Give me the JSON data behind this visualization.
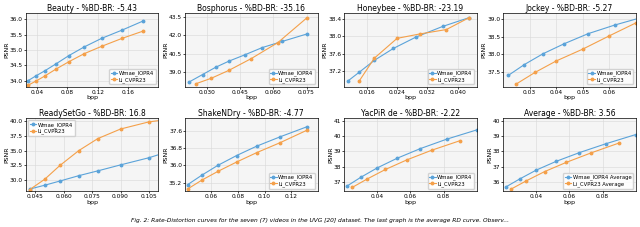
{
  "subplots": [
    {
      "title": "Beauty - %BD-BR: -5.43",
      "xlabel": "bpp",
      "ylabel": "PSNR",
      "xlim": [
        0.025,
        0.2
      ],
      "ylim": [
        33.8,
        36.2
      ],
      "curve1_x": [
        0.028,
        0.038,
        0.05,
        0.065,
        0.082,
        0.102,
        0.125,
        0.152,
        0.18
      ],
      "curve1_y": [
        34.0,
        34.15,
        34.32,
        34.55,
        34.82,
        35.1,
        35.38,
        35.65,
        35.95
      ],
      "curve2_x": [
        0.028,
        0.038,
        0.05,
        0.065,
        0.082,
        0.102,
        0.125,
        0.152,
        0.18
      ],
      "curve2_y": [
        33.85,
        33.98,
        34.15,
        34.38,
        34.62,
        34.88,
        35.12,
        35.38,
        35.62
      ],
      "label1": "Wmae_IOPR4",
      "label2": "Li_CVPR23",
      "legend_loc": "lower right"
    },
    {
      "title": "Bosphorus - %BD-BR: -35.16",
      "xlabel": "bpp",
      "ylabel": "PSNR",
      "xlim": [
        0.02,
        0.08
      ],
      "ylim": [
        37.8,
        43.8
      ],
      "curve1_x": [
        0.022,
        0.028,
        0.034,
        0.04,
        0.047,
        0.055,
        0.064,
        0.075
      ],
      "curve1_y": [
        38.2,
        38.8,
        39.4,
        39.9,
        40.4,
        41.0,
        41.5,
        42.1
      ],
      "curve2_x": [
        0.025,
        0.032,
        0.04,
        0.05,
        0.062,
        0.075
      ],
      "curve2_y": [
        38.05,
        38.5,
        39.15,
        40.1,
        41.4,
        43.4
      ],
      "label1": "Wmae_IOPR4",
      "label2": "Li_CVPR23",
      "legend_loc": "lower right"
    },
    {
      "title": "Honeybee - %BD-BR: -23.19",
      "xlabel": "bpp",
      "ylabel": "PSNR",
      "xlim": [
        0.01,
        0.045
      ],
      "ylim": [
        36.85,
        38.52
      ],
      "curve1_x": [
        0.011,
        0.014,
        0.018,
        0.023,
        0.029,
        0.036,
        0.043
      ],
      "curve1_y": [
        36.98,
        37.18,
        37.45,
        37.72,
        37.98,
        38.22,
        38.42
      ],
      "curve2_x": [
        0.014,
        0.018,
        0.024,
        0.03,
        0.037,
        0.043
      ],
      "curve2_y": [
        36.98,
        37.5,
        37.95,
        38.05,
        38.15,
        38.42
      ],
      "label1": "Wmae_IOPR4",
      "label2": "Li_CVPR23",
      "legend_loc": "lower right"
    },
    {
      "title": "Jockey - %BD-BR: -5.27",
      "xlabel": "bpp",
      "ylabel": "PSNR",
      "xlim": [
        0.02,
        0.07
      ],
      "ylim": [
        37.1,
        39.15
      ],
      "curve1_x": [
        0.022,
        0.028,
        0.035,
        0.043,
        0.052,
        0.062,
        0.073
      ],
      "curve1_y": [
        37.42,
        37.72,
        38.02,
        38.3,
        38.58,
        38.82,
        39.05
      ],
      "curve2_x": [
        0.025,
        0.032,
        0.04,
        0.05,
        0.06,
        0.07
      ],
      "curve2_y": [
        37.18,
        37.5,
        37.82,
        38.15,
        38.52,
        38.88
      ],
      "label1": "Wmae_IOPR4",
      "label2": "Li_CVPR23",
      "legend_loc": "lower right"
    },
    {
      "title": "ReadySetGo - %BD-BR: 16.8",
      "xlabel": "bpp",
      "ylabel": "PSNR",
      "xlim": [
        0.04,
        0.11
      ],
      "ylim": [
        28.2,
        40.5
      ],
      "curve1_x": [
        0.042,
        0.05,
        0.058,
        0.068,
        0.078,
        0.09,
        0.105,
        0.115
      ],
      "curve1_y": [
        28.55,
        29.2,
        29.9,
        30.8,
        31.6,
        32.6,
        33.8,
        34.8
      ],
      "curve2_x": [
        0.042,
        0.05,
        0.058,
        0.068,
        0.078,
        0.09,
        0.105,
        0.115
      ],
      "curve2_y": [
        28.45,
        30.2,
        32.5,
        35.0,
        37.0,
        38.6,
        39.8,
        40.2
      ],
      "label1": "Wmae_IOPR4",
      "label2": "Li_CVPR23",
      "legend_loc": "upper left"
    },
    {
      "title": "ShakeNDry - %BD-BR: -4.77",
      "xlabel": "bpp",
      "ylabel": "PSNR",
      "xlim": [
        0.04,
        0.14
      ],
      "ylim": [
        34.8,
        38.2
      ],
      "curve1_x": [
        0.042,
        0.053,
        0.065,
        0.079,
        0.094,
        0.112,
        0.132
      ],
      "curve1_y": [
        35.1,
        35.55,
        36.0,
        36.45,
        36.88,
        37.32,
        37.78
      ],
      "curve2_x": [
        0.042,
        0.053,
        0.065,
        0.079,
        0.094,
        0.112,
        0.132
      ],
      "curve2_y": [
        34.9,
        35.32,
        35.72,
        36.15,
        36.58,
        37.05,
        37.62
      ],
      "label1": "Wmae_IOPR4",
      "label2": "Li_CVPR23",
      "legend_loc": "lower right"
    },
    {
      "title": "YacPiR de - %BD-BR: -2.22",
      "xlabel": "bpp",
      "ylabel": "PSNR",
      "xlim": [
        0.02,
        0.1
      ],
      "ylim": [
        36.4,
        41.2
      ],
      "curve1_x": [
        0.022,
        0.03,
        0.04,
        0.052,
        0.066,
        0.082,
        0.1
      ],
      "curve1_y": [
        36.75,
        37.3,
        37.92,
        38.55,
        39.18,
        39.8,
        40.4
      ],
      "curve2_x": [
        0.025,
        0.034,
        0.045,
        0.058,
        0.073,
        0.09
      ],
      "curve2_y": [
        36.65,
        37.2,
        37.82,
        38.45,
        39.08,
        39.7
      ],
      "label1": "Wmae_IOPR4",
      "label2": "Li_CVPR23",
      "legend_loc": "lower right"
    },
    {
      "title": "Average - %BD-BR: 3.56",
      "xlabel": "bpp",
      "ylabel": "PSNR",
      "xlim": [
        0.02,
        0.1
      ],
      "ylim": [
        35.4,
        40.2
      ],
      "curve1_x": [
        0.022,
        0.03,
        0.04,
        0.052,
        0.066,
        0.082,
        0.1
      ],
      "curve1_y": [
        35.7,
        36.2,
        36.78,
        37.35,
        37.92,
        38.5,
        39.1
      ],
      "curve2_x": [
        0.025,
        0.034,
        0.045,
        0.058,
        0.073,
        0.09
      ],
      "curve2_y": [
        35.55,
        36.08,
        36.68,
        37.28,
        37.9,
        38.55
      ],
      "label1": "Wmae_IOPR4 Average",
      "label2": "Li_CVPR23 Average",
      "legend_loc": "lower right"
    }
  ],
  "color1": "#5ba3d9",
  "color2": "#f4a04a",
  "marker1": "o",
  "marker2": "o",
  "markersize": 1.8,
  "linewidth": 0.8,
  "grid_color": "#d8d8d8",
  "bg_color": "#f5f5f5",
  "title_fontsize": 5.5,
  "label_fontsize": 4.5,
  "tick_fontsize": 4.2,
  "legend_fontsize": 3.8,
  "caption": "Fig. 2: Rate-Distortion curves for the seven (7) videos in the UVG [20] dataset. The last graph is the average RD curve. Observ..."
}
